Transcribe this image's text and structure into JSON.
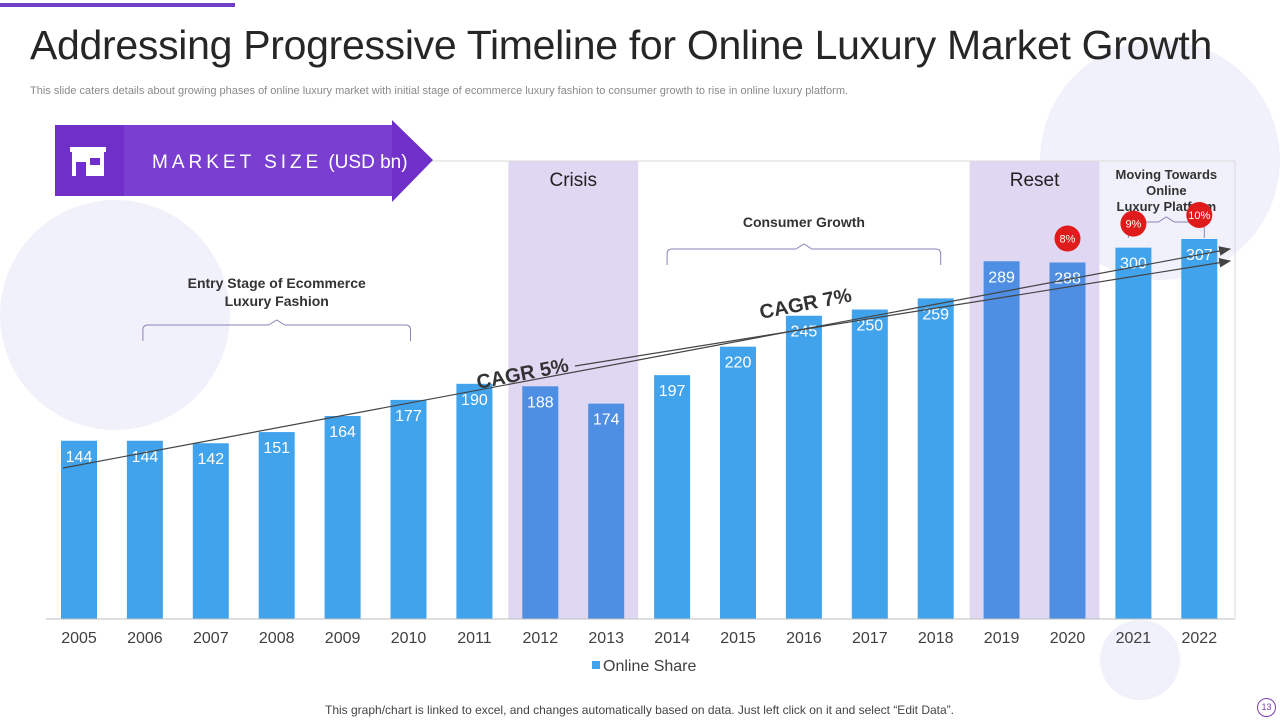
{
  "title": "Addressing Progressive Timeline for Online Luxury Market Growth",
  "subtitle": "This slide caters details about growing phases of online luxury market with initial stage of ecommerce luxury fashion to consumer growth to rise in online luxury platform.",
  "footer": "This graph/chart is linked to excel,  and changes automatically based on data. Just left click on it and select “Edit Data”.",
  "page_number": "13",
  "banner": {
    "label": "MARKET SIZE",
    "unit": "(USD bn)",
    "icon": "store-icon"
  },
  "colors": {
    "accent": "#6f2fc8",
    "bar": "#41a3ec",
    "bar_crisis": "#4e8fe4",
    "shade": "#e0d7f3",
    "badge": "#e01b1b",
    "line": "#555555"
  },
  "chart_data": {
    "type": "bar",
    "categories": [
      "2005",
      "2006",
      "2007",
      "2008",
      "2009",
      "2010",
      "2011",
      "2012",
      "2013",
      "2014",
      "2015",
      "2016",
      "2017",
      "2018",
      "2019",
      "2020",
      "2021",
      "2022"
    ],
    "series": [
      {
        "name": "Online Share",
        "values": [
          144,
          144,
          142,
          151,
          164,
          177,
          190,
          188,
          174,
          197,
          220,
          245,
          250,
          259,
          289,
          288,
          300,
          307
        ]
      }
    ],
    "ylim": [
      0,
      370
    ],
    "legend": "bottom",
    "shaded_periods": [
      {
        "label": "Crisis",
        "categories": [
          "2012",
          "2013"
        ]
      },
      {
        "label": "Reset",
        "categories": [
          "2019",
          "2020"
        ]
      }
    ],
    "phases": [
      {
        "lines": [
          "Entry Stage of Ecommerce",
          "Luxury Fashion"
        ],
        "from": "2006",
        "to": "2010"
      },
      {
        "lines": [
          "Consumer Growth"
        ],
        "from": "2014",
        "to": "2018"
      },
      {
        "lines": [
          "Moving Towards",
          "Online",
          "Luxury Platform"
        ],
        "from": "2021",
        "to": "2022"
      }
    ],
    "cagr_labels": [
      "CAGR 5%",
      "CAGR 7%"
    ],
    "growth_badges": [
      {
        "category": "2020",
        "label": "8%"
      },
      {
        "category": "2021",
        "label": "9%"
      },
      {
        "category": "2022",
        "label": "10%"
      }
    ]
  }
}
